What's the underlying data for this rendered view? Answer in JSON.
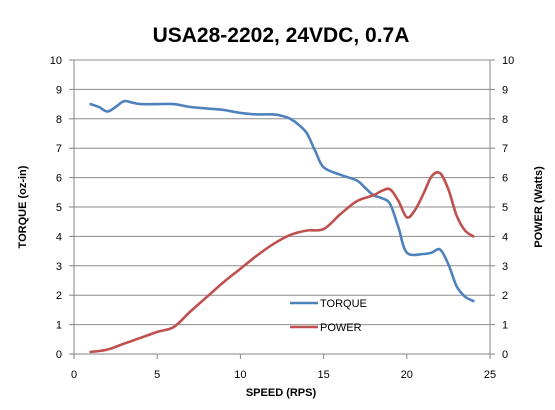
{
  "chart_data": {
    "type": "line",
    "title": "USA28-2202, 24VDC, 0.7A",
    "xlabel": "SPEED (RPS)",
    "ylabel_left": "TORQUE (oz-in)",
    "ylabel_right": "POWER (Watts)",
    "xlim": [
      0,
      25
    ],
    "ylim": [
      0,
      10
    ],
    "x_ticks": [
      0,
      5,
      10,
      15,
      20,
      25
    ],
    "y_ticks": [
      0,
      1,
      2,
      3,
      4,
      5,
      6,
      7,
      8,
      9,
      10
    ],
    "grid": true,
    "legend_position": "bottom-center",
    "series": [
      {
        "name": "TORQUE",
        "axis": "left",
        "color": "#4f81bd",
        "x": [
          1,
          1.5,
          2,
          2.5,
          3,
          3.5,
          4,
          5,
          6,
          7,
          8,
          9,
          10,
          11,
          12,
          12.5,
          13,
          13.5,
          14,
          14.5,
          15,
          16,
          17,
          17.5,
          18,
          18.5,
          19,
          19.5,
          20,
          21,
          21.5,
          22,
          22.5,
          23,
          23.5,
          24
        ],
        "values": [
          8.5,
          8.4,
          8.25,
          8.4,
          8.6,
          8.55,
          8.5,
          8.5,
          8.5,
          8.4,
          8.35,
          8.3,
          8.2,
          8.15,
          8.15,
          8.1,
          8.0,
          7.8,
          7.5,
          6.9,
          6.35,
          6.1,
          5.9,
          5.65,
          5.4,
          5.3,
          5.1,
          4.3,
          3.45,
          3.4,
          3.45,
          3.55,
          3.05,
          2.3,
          1.95,
          1.8
        ]
      },
      {
        "name": "POWER",
        "axis": "right",
        "color": "#c0504d",
        "x": [
          1,
          2,
          3,
          4,
          5,
          6,
          7,
          8,
          9,
          10,
          11,
          12,
          13,
          14,
          15,
          16,
          17,
          18,
          18.5,
          19,
          19.5,
          20,
          20.5,
          21,
          21.5,
          22,
          22.5,
          23,
          23.5,
          24
        ],
        "values": [
          0.07,
          0.15,
          0.35,
          0.55,
          0.75,
          0.92,
          1.45,
          1.95,
          2.45,
          2.9,
          3.35,
          3.75,
          4.05,
          4.2,
          4.25,
          4.75,
          5.2,
          5.4,
          5.55,
          5.6,
          5.2,
          4.65,
          4.9,
          5.45,
          6.05,
          6.15,
          5.6,
          4.7,
          4.2,
          4.0
        ]
      }
    ]
  }
}
